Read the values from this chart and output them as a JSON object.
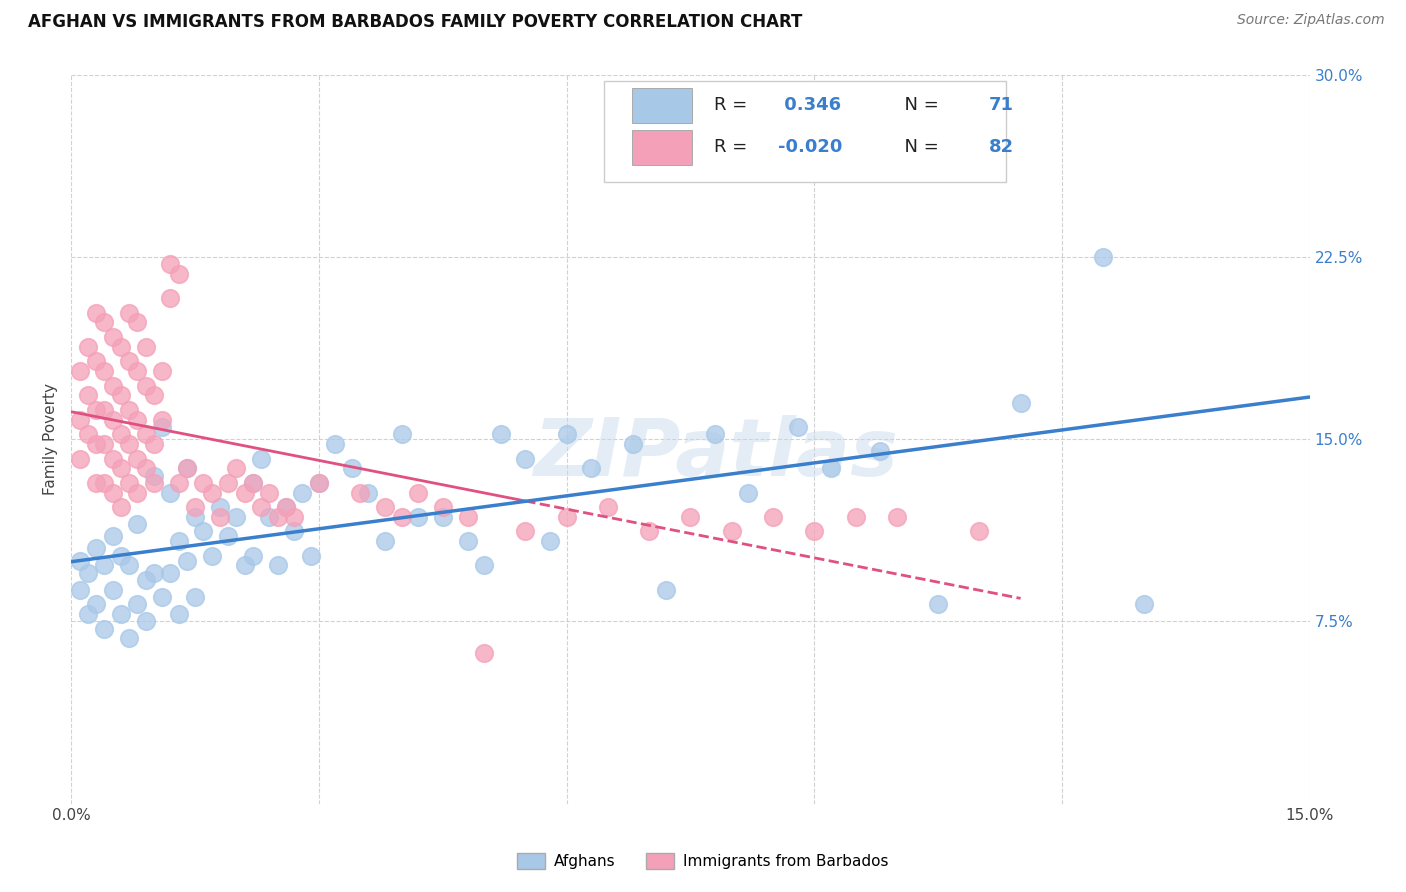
{
  "title": "AFGHAN VS IMMIGRANTS FROM BARBADOS FAMILY POVERTY CORRELATION CHART",
  "source": "Source: ZipAtlas.com",
  "ylabel": "Family Poverty",
  "x_min": 0.0,
  "x_max": 0.15,
  "y_min": 0.0,
  "y_max": 0.3,
  "y_ticks": [
    0.075,
    0.15,
    0.225,
    0.3
  ],
  "y_tick_labels": [
    "7.5%",
    "15.0%",
    "22.5%",
    "30.0%"
  ],
  "x_ticks": [
    0.0,
    0.03,
    0.06,
    0.09,
    0.12,
    0.15
  ],
  "x_tick_labels": [
    "0.0%",
    "",
    "",
    "",
    "",
    "15.0%"
  ],
  "afghan_R": 0.346,
  "afghan_N": 71,
  "barbados_R": -0.02,
  "barbados_N": 82,
  "afghan_color": "#a8c8e8",
  "barbados_color": "#f4a0b8",
  "afghan_line_color": "#3a7fcc",
  "barbados_line_color": "#e05080",
  "background_color": "#ffffff",
  "grid_color": "#cccccc",
  "title_fontsize": 12,
  "tick_fontsize": 11,
  "source_fontsize": 10,
  "ylabel_fontsize": 11,
  "legend_fontsize": 13,
  "afghan_x": [
    0.001,
    0.001,
    0.002,
    0.002,
    0.003,
    0.003,
    0.004,
    0.004,
    0.005,
    0.005,
    0.006,
    0.006,
    0.007,
    0.007,
    0.008,
    0.008,
    0.009,
    0.009,
    0.01,
    0.01,
    0.011,
    0.011,
    0.012,
    0.012,
    0.013,
    0.013,
    0.014,
    0.014,
    0.015,
    0.015,
    0.016,
    0.017,
    0.018,
    0.019,
    0.02,
    0.021,
    0.022,
    0.022,
    0.023,
    0.024,
    0.025,
    0.026,
    0.027,
    0.028,
    0.029,
    0.03,
    0.032,
    0.034,
    0.036,
    0.038,
    0.04,
    0.042,
    0.045,
    0.048,
    0.05,
    0.052,
    0.055,
    0.058,
    0.06,
    0.063,
    0.068,
    0.072,
    0.078,
    0.082,
    0.088,
    0.092,
    0.098,
    0.105,
    0.115,
    0.125,
    0.13
  ],
  "afghan_y": [
    0.1,
    0.088,
    0.095,
    0.078,
    0.105,
    0.082,
    0.098,
    0.072,
    0.11,
    0.088,
    0.102,
    0.078,
    0.098,
    0.068,
    0.115,
    0.082,
    0.092,
    0.075,
    0.135,
    0.095,
    0.155,
    0.085,
    0.128,
    0.095,
    0.108,
    0.078,
    0.138,
    0.1,
    0.118,
    0.085,
    0.112,
    0.102,
    0.122,
    0.11,
    0.118,
    0.098,
    0.132,
    0.102,
    0.142,
    0.118,
    0.098,
    0.122,
    0.112,
    0.128,
    0.102,
    0.132,
    0.148,
    0.138,
    0.128,
    0.108,
    0.152,
    0.118,
    0.118,
    0.108,
    0.098,
    0.152,
    0.142,
    0.108,
    0.152,
    0.138,
    0.148,
    0.088,
    0.152,
    0.128,
    0.155,
    0.138,
    0.145,
    0.082,
    0.165,
    0.225,
    0.082
  ],
  "barbados_x": [
    0.001,
    0.001,
    0.001,
    0.002,
    0.002,
    0.002,
    0.003,
    0.003,
    0.003,
    0.003,
    0.003,
    0.004,
    0.004,
    0.004,
    0.004,
    0.004,
    0.005,
    0.005,
    0.005,
    0.005,
    0.005,
    0.006,
    0.006,
    0.006,
    0.006,
    0.006,
    0.007,
    0.007,
    0.007,
    0.007,
    0.007,
    0.008,
    0.008,
    0.008,
    0.008,
    0.008,
    0.009,
    0.009,
    0.009,
    0.009,
    0.01,
    0.01,
    0.01,
    0.011,
    0.011,
    0.012,
    0.012,
    0.013,
    0.013,
    0.014,
    0.015,
    0.016,
    0.017,
    0.018,
    0.019,
    0.02,
    0.021,
    0.022,
    0.023,
    0.024,
    0.025,
    0.026,
    0.027,
    0.03,
    0.035,
    0.038,
    0.04,
    0.042,
    0.045,
    0.048,
    0.05,
    0.055,
    0.06,
    0.065,
    0.07,
    0.075,
    0.08,
    0.085,
    0.09,
    0.095,
    0.1,
    0.11
  ],
  "barbados_y": [
    0.178,
    0.158,
    0.142,
    0.188,
    0.168,
    0.152,
    0.202,
    0.182,
    0.162,
    0.148,
    0.132,
    0.198,
    0.178,
    0.162,
    0.148,
    0.132,
    0.192,
    0.172,
    0.158,
    0.142,
    0.128,
    0.188,
    0.168,
    0.152,
    0.138,
    0.122,
    0.202,
    0.182,
    0.162,
    0.148,
    0.132,
    0.198,
    0.178,
    0.158,
    0.142,
    0.128,
    0.188,
    0.172,
    0.152,
    0.138,
    0.168,
    0.148,
    0.132,
    0.178,
    0.158,
    0.222,
    0.208,
    0.218,
    0.132,
    0.138,
    0.122,
    0.132,
    0.128,
    0.118,
    0.132,
    0.138,
    0.128,
    0.132,
    0.122,
    0.128,
    0.118,
    0.122,
    0.118,
    0.132,
    0.128,
    0.122,
    0.118,
    0.128,
    0.122,
    0.118,
    0.062,
    0.112,
    0.118,
    0.122,
    0.112,
    0.118,
    0.112,
    0.118,
    0.112,
    0.118,
    0.118,
    0.112
  ]
}
